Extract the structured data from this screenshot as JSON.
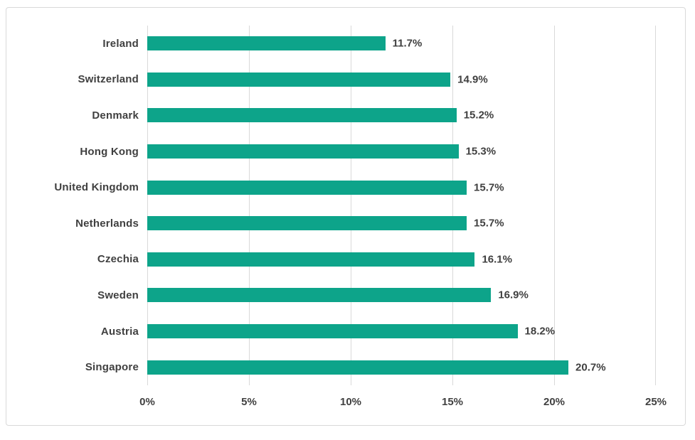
{
  "chart_data": {
    "type": "bar",
    "orientation": "horizontal",
    "title": "",
    "xlabel": "",
    "ylabel": "",
    "categories": [
      "Ireland",
      "Switzerland",
      "Denmark",
      "Hong Kong",
      "United Kingdom",
      "Netherlands",
      "Czechia",
      "Sweden",
      "Austria",
      "Singapore"
    ],
    "values": [
      11.7,
      14.9,
      15.2,
      15.3,
      15.7,
      15.7,
      16.1,
      16.9,
      18.2,
      20.7
    ],
    "value_labels": [
      "11.7%",
      "14.9%",
      "15.2%",
      "15.3%",
      "15.7%",
      "15.7%",
      "16.1%",
      "16.9%",
      "18.2%",
      "20.7%"
    ],
    "x_ticks": [
      "0%",
      "5%",
      "10%",
      "15%",
      "20%",
      "25%"
    ],
    "x_tick_values": [
      0,
      5,
      10,
      15,
      20,
      25
    ],
    "xlim": [
      0,
      25
    ],
    "grid": "vertical",
    "legend": "none",
    "colors": {
      "bar": "#0DA48A",
      "gridline": "#D9D9D9",
      "axis_line": "#D9D9D9",
      "label_text": "#404040",
      "chart_border": "#D9D9D9",
      "background": "#FFFFFF"
    }
  }
}
